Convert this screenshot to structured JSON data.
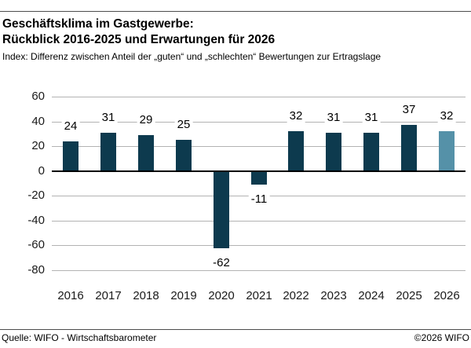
{
  "header": {
    "title_line1": "Geschäftsklima im Gastgewerbe:",
    "title_line2": "Rückblick 2016-2025 und Erwartungen für 2026",
    "subtitle": "Index: Differenz zwischen Anteil der „guten“ und „schlechten“ Bewertungen zur Ertragslage"
  },
  "chart_data": {
    "type": "bar",
    "categories": [
      "2016",
      "2017",
      "2018",
      "2019",
      "2020",
      "2021",
      "2022",
      "2023",
      "2024",
      "2025",
      "2026"
    ],
    "values": [
      24,
      31,
      29,
      25,
      -62,
      -11,
      32,
      31,
      31,
      37,
      32
    ],
    "title": "Geschäftsklima im Gastgewerbe: Rückblick 2016-2025 und Erwartungen für 2026",
    "xlabel": "",
    "ylabel": "",
    "ylim": [
      -80,
      60
    ],
    "ytick_step": 20,
    "grid": true,
    "legend": "none",
    "value_labels": true,
    "bar_color": "#0d3a4e",
    "highlight_color": "#5591a8",
    "highlight_category": "2026",
    "gridline_color": "#b3b3b3",
    "zero_line_color": "#000000"
  },
  "footer": {
    "source": "Quelle: WIFO - Wirtschaftsbarometer",
    "copyright": "©2026 WIFO"
  }
}
